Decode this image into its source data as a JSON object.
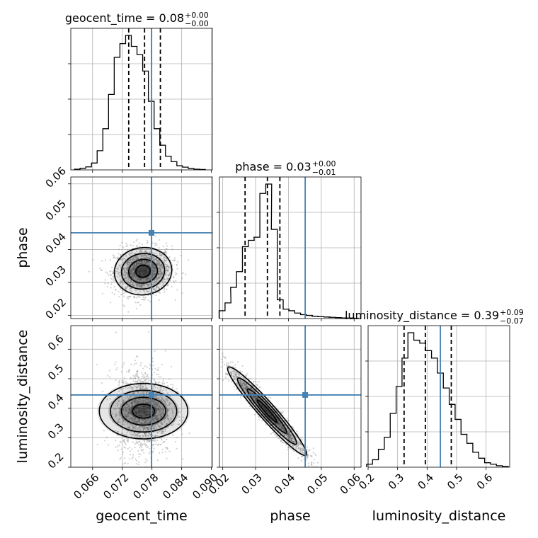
{
  "colors": {
    "truth": "#4682b4",
    "hist": "#000000",
    "quantile": "#000000",
    "samples": "#7f7f7f",
    "grid": "#b0b0b0"
  },
  "chart_data": {
    "type": "corner",
    "parameters": [
      "geocent_time",
      "phase",
      "luminosity_distance"
    ],
    "truths": {
      "geocent_time": 0.0779,
      "phase": 0.0451,
      "luminosity_distance": 0.445
    },
    "ranges": {
      "geocent_time": [
        0.0616,
        0.0902
      ],
      "phase": [
        0.019,
        0.0621
      ],
      "luminosity_distance": [
        0.2,
        0.68
      ]
    },
    "ticks": {
      "geocent_time": [
        "0.066",
        "0.072",
        "0.078",
        "0.084",
        "0.090"
      ],
      "phase": [
        "0.02",
        "0.03",
        "0.04",
        "0.05",
        "0.06"
      ],
      "luminosity_distance": [
        "0.2",
        "0.3",
        "0.4",
        "0.5",
        "0.6"
      ]
    },
    "titles": {
      "geocent_time": {
        "name": "geocent_time",
        "value": "0.08",
        "plus": "+0.00",
        "minus": "−0.00"
      },
      "phase": {
        "name": "phase",
        "value": "0.03",
        "plus": "+0.00",
        "minus": "−0.01"
      },
      "luminosity_distance": {
        "name": "luminosity_distance",
        "value": "0.39",
        "plus": "+0.09",
        "minus": "−0.07"
      }
    },
    "histograms": {
      "geocent_time": {
        "x": [
          0.0629,
          0.06405,
          0.0652,
          0.06635,
          0.0675,
          0.06865,
          0.0698,
          0.07095,
          0.0721,
          0.07325,
          0.0744,
          0.07555,
          0.0767,
          0.07785,
          0.079,
          0.08015,
          0.0813,
          0.08245,
          0.0836,
          0.08475,
          0.0859,
          0.08705,
          0.0882
        ],
        "density": [
          0.005,
          0.012,
          0.022,
          0.05,
          0.14,
          0.3,
          0.55,
          0.82,
          0.92,
          0.98,
          0.9,
          0.84,
          0.72,
          0.5,
          0.3,
          0.18,
          0.1,
          0.06,
          0.03,
          0.02,
          0.01,
          0.005,
          0.003
        ],
        "quantiles": [
          0.0733,
          0.0765,
          0.0797
        ]
      },
      "phase": {
        "x": [
          0.0198,
          0.0216,
          0.0233,
          0.0251,
          0.0269,
          0.0287,
          0.0304,
          0.0322,
          0.034,
          0.0357,
          0.0375,
          0.0393,
          0.041,
          0.0428,
          0.0446,
          0.0464,
          0.0481,
          0.0499,
          0.0517,
          0.0534,
          0.0552,
          0.057,
          0.0587,
          0.0605
        ],
        "density": [
          0.05,
          0.1,
          0.2,
          0.3,
          0.46,
          0.5,
          0.52,
          0.8,
          0.86,
          0.57,
          0.12,
          0.06,
          0.05,
          0.035,
          0.025,
          0.02,
          0.015,
          0.012,
          0.01,
          0.008,
          0.006,
          0.004,
          0.003,
          0.002
        ],
        "quantiles": [
          0.0268,
          0.0336,
          0.0374
        ]
      },
      "luminosity_distance": {
        "x": [
          0.205,
          0.225,
          0.245,
          0.265,
          0.285,
          0.305,
          0.325,
          0.345,
          0.365,
          0.385,
          0.405,
          0.425,
          0.445,
          0.465,
          0.485,
          0.505,
          0.525,
          0.545,
          0.565,
          0.585,
          0.605,
          0.625,
          0.645,
          0.665
        ],
        "density": [
          0.02,
          0.05,
          0.12,
          0.2,
          0.36,
          0.54,
          0.73,
          0.9,
          0.85,
          0.83,
          0.78,
          0.73,
          0.63,
          0.53,
          0.42,
          0.32,
          0.22,
          0.16,
          0.1,
          0.06,
          0.03,
          0.02,
          0.01,
          0.005
        ],
        "quantiles": [
          0.322,
          0.394,
          0.482
        ]
      }
    },
    "pairs": [
      {
        "x": "geocent_time",
        "y": "phase",
        "center": [
          0.0762,
          0.0334
        ],
        "sd": [
          0.0029,
          0.0036
        ],
        "corr": 0.05
      },
      {
        "x": "geocent_time",
        "y": "luminosity_distance",
        "center": [
          0.0763,
          0.39
        ],
        "sd": [
          0.0028,
          0.075
        ],
        "corr": 0.0
      },
      {
        "x": "phase",
        "y": "luminosity_distance",
        "center": [
          0.0335,
          0.39
        ],
        "sd": [
          0.006,
          0.075
        ],
        "corr": -0.96
      }
    ]
  }
}
